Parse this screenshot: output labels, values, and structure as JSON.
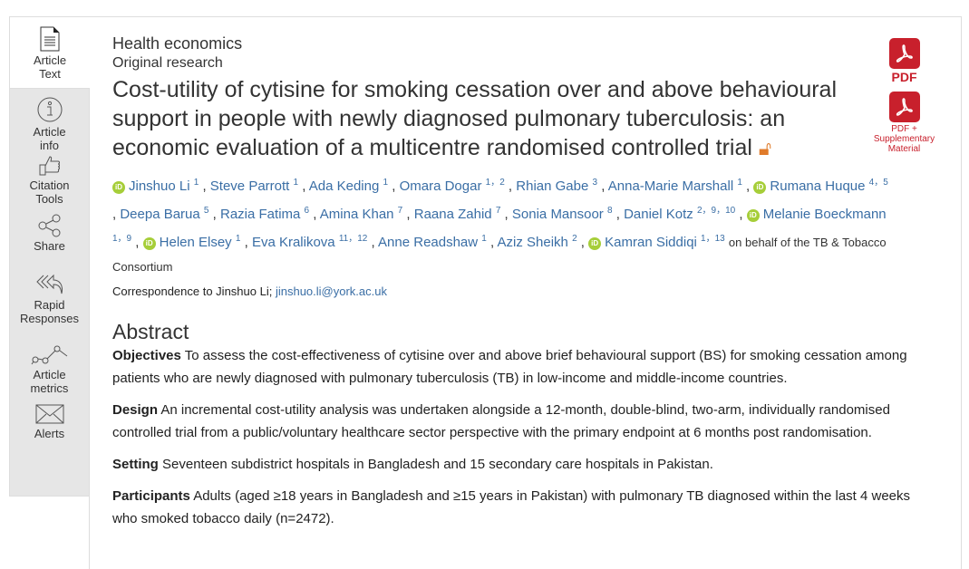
{
  "sidebar": {
    "items": [
      {
        "label1": "Article",
        "label2": "Text",
        "icon": "document-icon"
      },
      {
        "label1": "Article",
        "label2": "info",
        "icon": "info-icon"
      },
      {
        "label1": "Citation",
        "label2": "Tools",
        "icon": "thumbs-up-icon"
      },
      {
        "label1": "Share",
        "label2": "",
        "icon": "share-icon"
      },
      {
        "label1": "Rapid",
        "label2": "Responses",
        "icon": "reply-icon"
      },
      {
        "label1": "Article",
        "label2": "metrics",
        "icon": "metrics-icon"
      },
      {
        "label1": "Alerts",
        "label2": "",
        "icon": "envelope-icon"
      }
    ]
  },
  "article": {
    "section": "Health economics",
    "type": "Original research",
    "title": "Cost-utility of cytisine for smoking cessation over and above behavioural support in people with newly diagnosed pulmonary tuberculosis: an economic evaluation of a multicentre randomised controlled trial",
    "open_access_icon": "open-access-icon",
    "authors": [
      {
        "name": "Jinshuo Li",
        "sup": "1",
        "orcid": true
      },
      {
        "name": "Steve Parrott",
        "sup": "1"
      },
      {
        "name": "Ada Keding",
        "sup": "1"
      },
      {
        "name": "Omara Dogar",
        "sup": "1，2"
      },
      {
        "name": "Rhian Gabe",
        "sup": "3"
      },
      {
        "name": "Anna-Marie Marshall",
        "sup": "1"
      },
      {
        "name": "Rumana Huque",
        "sup": "4，5",
        "orcid": true
      },
      {
        "name": "Deepa Barua",
        "sup": "5"
      },
      {
        "name": "Razia Fatima",
        "sup": "6"
      },
      {
        "name": "Amina Khan",
        "sup": "7"
      },
      {
        "name": "Raana Zahid",
        "sup": "7"
      },
      {
        "name": "Sonia Mansoor",
        "sup": "8"
      },
      {
        "name": "Daniel Kotz",
        "sup": "2，9，10"
      },
      {
        "name": "Melanie Boeckmann",
        "sup": "1，9",
        "orcid": true
      },
      {
        "name": "Helen Elsey",
        "sup": "1",
        "orcid": true
      },
      {
        "name": "Eva Kralikova",
        "sup": "11，12"
      },
      {
        "name": "Anne Readshaw",
        "sup": "1"
      },
      {
        "name": "Aziz Sheikh",
        "sup": "2"
      },
      {
        "name": "Kamran Siddiqi",
        "sup": "1，13",
        "orcid": true
      }
    ],
    "orcid_label": "iD",
    "behalf": "on behalf of the TB & Tobacco Consortium",
    "correspondence_prefix": "Correspondence to Jinshuo Li; ",
    "correspondence_email": "jinshuo.li@york.ac.uk"
  },
  "abstract": {
    "heading": "Abstract",
    "paras": [
      {
        "label": "Objectives",
        "text": " To assess the cost-effectiveness of cytisine over and above brief behavioural support (BS) for smoking cessation among patients who are newly diagnosed with pulmonary tuberculosis (TB) in low-income and middle-income countries."
      },
      {
        "label": "Design",
        "text": " An incremental cost-utility analysis was undertaken alongside a 12-month, double-blind, two-arm, individually randomised controlled trial from a public/voluntary healthcare sector perspective with the primary endpoint at 6 months post randomisation."
      },
      {
        "label": "Setting",
        "text": " Seventeen subdistrict hospitals in Bangladesh and 15 secondary care hospitals in Pakistan."
      },
      {
        "label": "Participants",
        "text": " Adults (aged ≥18 years in Bangladesh and ≥15 years in Pakistan) with pulmonary TB diagnosed within the last 4 weeks who smoked tobacco daily (n=2472)."
      }
    ]
  },
  "downloads": {
    "pdf": "PDF",
    "supp": "PDF + Supplementary Material",
    "color": "#c8202c"
  }
}
